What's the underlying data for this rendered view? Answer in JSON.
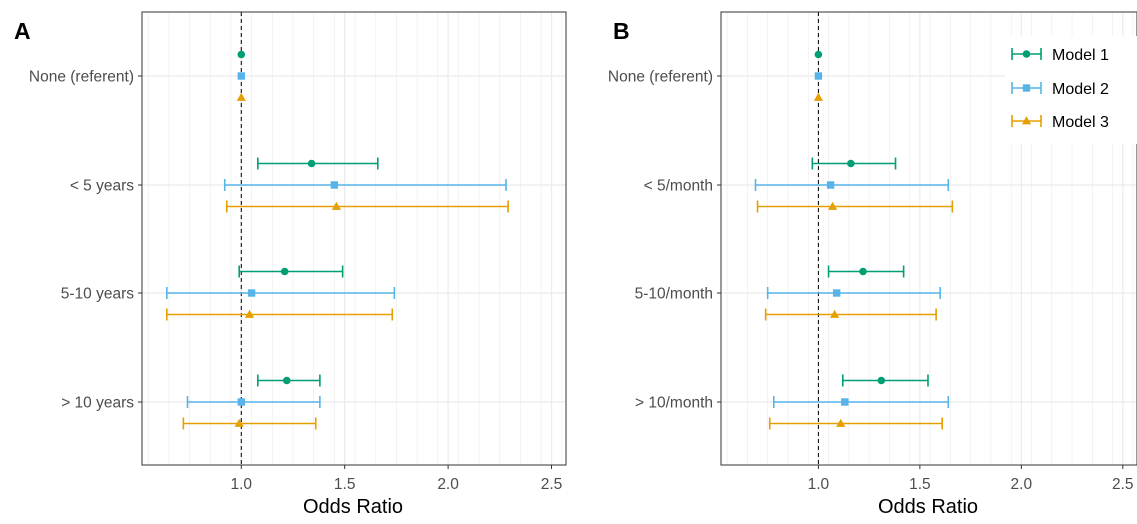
{
  "chart_data": [
    {
      "type": "forest",
      "panel_label": "A",
      "xlabel": "Odds Ratio",
      "ylabel": "",
      "xlim": [
        0.52,
        2.57
      ],
      "xticks": [
        "1.0",
        "1.5",
        "2.0",
        "2.5"
      ],
      "categories": [
        "None (referent)",
        "< 5 years",
        "5-10 years",
        "> 10 years"
      ],
      "reference_line": 1.0,
      "grid": true,
      "series": [
        {
          "name": "Model 1",
          "estimate": [
            1.0,
            1.34,
            1.21,
            1.22
          ],
          "lower": [
            null,
            1.08,
            0.99,
            1.08
          ],
          "upper": [
            null,
            1.66,
            1.49,
            1.38
          ]
        },
        {
          "name": "Model 2",
          "estimate": [
            1.0,
            1.45,
            1.05,
            1.0
          ],
          "lower": [
            null,
            0.92,
            0.64,
            0.74
          ],
          "upper": [
            null,
            2.28,
            1.74,
            1.38
          ]
        },
        {
          "name": "Model 3",
          "estimate": [
            1.0,
            1.46,
            1.04,
            0.99
          ],
          "lower": [
            null,
            0.93,
            0.64,
            0.72
          ],
          "upper": [
            null,
            2.29,
            1.73,
            1.36
          ]
        }
      ]
    },
    {
      "type": "forest",
      "panel_label": "B",
      "xlabel": "Odds Ratio",
      "ylabel": "",
      "xlim": [
        0.52,
        2.57
      ],
      "xticks": [
        "1.0",
        "1.5",
        "2.0",
        "2.5"
      ],
      "categories": [
        "None (referent)",
        "< 5/month",
        "5-10/month",
        "> 10/month"
      ],
      "reference_line": 1.0,
      "grid": true,
      "legend_position": "top-right",
      "series": [
        {
          "name": "Model 1",
          "estimate": [
            1.0,
            1.16,
            1.22,
            1.31
          ],
          "lower": [
            null,
            0.97,
            1.05,
            1.12
          ],
          "upper": [
            null,
            1.38,
            1.42,
            1.54
          ]
        },
        {
          "name": "Model 2",
          "estimate": [
            1.0,
            1.06,
            1.09,
            1.13
          ],
          "lower": [
            null,
            0.69,
            0.75,
            0.78
          ],
          "upper": [
            null,
            1.64,
            1.6,
            1.64
          ]
        },
        {
          "name": "Model 3",
          "estimate": [
            1.0,
            1.07,
            1.08,
            1.11
          ],
          "lower": [
            null,
            0.7,
            0.74,
            0.76
          ],
          "upper": [
            null,
            1.66,
            1.58,
            1.61
          ]
        }
      ]
    }
  ],
  "legend": {
    "entries": [
      "Model 1",
      "Model 2",
      "Model 3"
    ]
  },
  "colors": {
    "Model 1": "#009E73",
    "Model 2": "#56B4E9",
    "Model 3": "#E69F00",
    "grid": "#EBEBEB",
    "axis_text": "#4D4D4D",
    "reference_line": "#000000"
  },
  "markers": {
    "Model 1": "circle",
    "Model 2": "square",
    "Model 3": "triangle"
  }
}
